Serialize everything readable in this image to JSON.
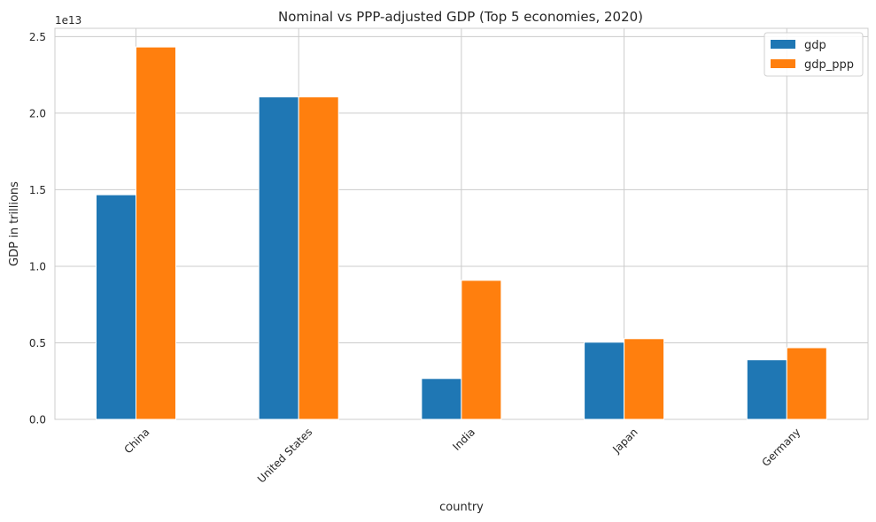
{
  "chart_data": {
    "type": "bar",
    "title": "Nominal vs PPP-adjusted GDP (Top 5 economies, 2020)",
    "xlabel": "country",
    "ylabel": "GDP in trillions",
    "offset_label": "1e13",
    "categories": [
      "China",
      "United States",
      "India",
      "Japan",
      "Germany"
    ],
    "series": [
      {
        "name": "gdp",
        "color": "#1f77b4",
        "values": [
          14670000000000.0,
          21060000000000.0,
          2670000000000.0,
          5040000000000.0,
          3890000000000.0
        ]
      },
      {
        "name": "gdp_ppp",
        "color": "#ff7f0e",
        "values": [
          24320000000000.0,
          21060000000000.0,
          9080000000000.0,
          5270000000000.0,
          4680000000000.0
        ]
      }
    ],
    "yticks": [
      0,
      5000000000000.0,
      10000000000000.0,
      15000000000000.0,
      20000000000000.0,
      25000000000000.0
    ],
    "ytick_labels": [
      "0.0",
      "0.5",
      "1.0",
      "1.5",
      "2.0",
      "2.5"
    ],
    "ylim": [
      0,
      25540000000000.0
    ],
    "grid": true,
    "legend_position": "top-right"
  }
}
